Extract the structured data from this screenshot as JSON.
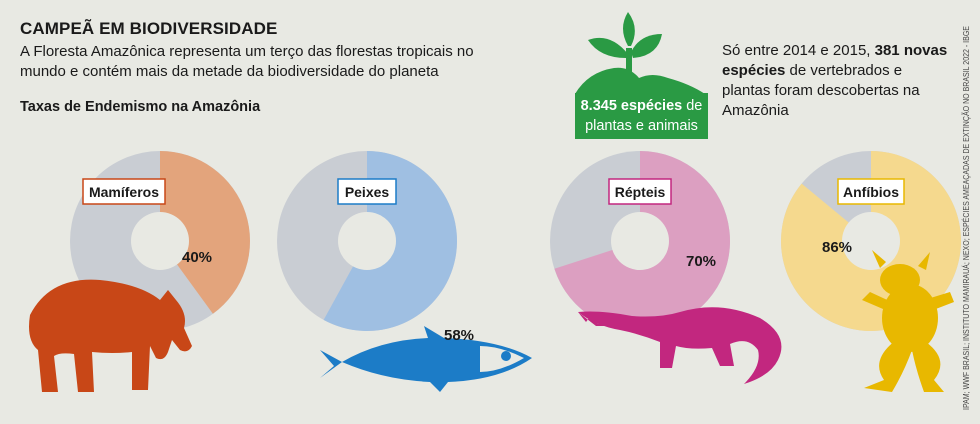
{
  "header": {
    "title": "CAMPEÃ EM BIODIVERSIDADE",
    "subtitle": "A Floresta Amazônica representa um terço das florestas tropicais no mundo e contém mais da metade da biodiversidade do planeta",
    "section_title": "Taxas de Endemismo na Amazônia"
  },
  "callout_species": {
    "number": "8.345 espécies",
    "de": "de",
    "line2": "plantas e animais"
  },
  "callout_new": {
    "prefix": "Só entre 2014 e 2015, ",
    "highlight": "381 novas espécies",
    "suffix": " de vertebrados e plantas foram descobertas na Amazônia"
  },
  "credit": "IPAM; WWF BRASIL; INSTITUTO MAMIRAUÁ; NEXO; ESPÉCIES AMEAÇADAS DE EXTINÇÃO NO BRASIL 2022 - IBGE",
  "colors": {
    "background": "#e8e9e3",
    "remainder": "#c9cdd3",
    "mamiferos": "#e3a47c",
    "peixes": "#9fbfe2",
    "repteis": "#dc9fc1",
    "anfibios": "#f5d98e",
    "tapir": "#c84717",
    "fish": "#1c7cc7",
    "croc": "#c2277f",
    "frog": "#e8b800",
    "green": "#2a9a44"
  },
  "icons": [
    "plant-icon",
    "tapir-icon",
    "fish-icon",
    "crocodile-icon",
    "frog-icon"
  ],
  "chart_data": {
    "type": "pie",
    "title": "Taxas de Endemismo na Amazônia",
    "unit": "%",
    "categories": [
      "Mamíferos",
      "Peixes",
      "Répteis",
      "Anfíbios"
    ],
    "values": [
      40,
      58,
      70,
      86
    ],
    "labels": [
      "40%",
      "58%",
      "70%",
      "86%"
    ]
  }
}
